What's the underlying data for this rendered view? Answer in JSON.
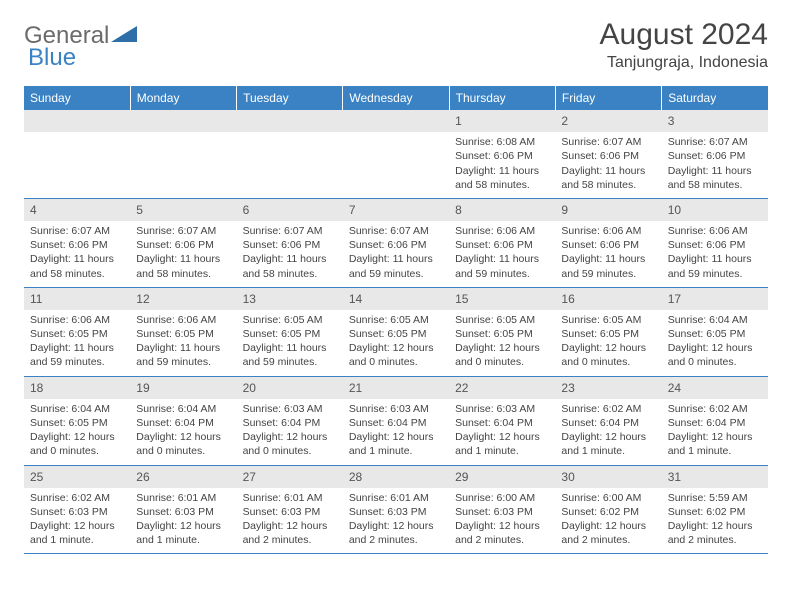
{
  "logo": {
    "general": "General",
    "blue": "Blue"
  },
  "title": "August 2024",
  "location": "Tanjungraja, Indonesia",
  "colors": {
    "header_bg": "#3b82c4",
    "header_text": "#ffffff",
    "daynum_bg": "#e8e8e8",
    "text": "#444444",
    "row_border": "#3b82c4",
    "background": "#ffffff"
  },
  "weekdays": [
    "Sunday",
    "Monday",
    "Tuesday",
    "Wednesday",
    "Thursday",
    "Friday",
    "Saturday"
  ],
  "first_weekday_index": 4,
  "days": [
    {
      "n": 1,
      "sunrise": "6:08 AM",
      "sunset": "6:06 PM",
      "daylight": "11 hours and 58 minutes."
    },
    {
      "n": 2,
      "sunrise": "6:07 AM",
      "sunset": "6:06 PM",
      "daylight": "11 hours and 58 minutes."
    },
    {
      "n": 3,
      "sunrise": "6:07 AM",
      "sunset": "6:06 PM",
      "daylight": "11 hours and 58 minutes."
    },
    {
      "n": 4,
      "sunrise": "6:07 AM",
      "sunset": "6:06 PM",
      "daylight": "11 hours and 58 minutes."
    },
    {
      "n": 5,
      "sunrise": "6:07 AM",
      "sunset": "6:06 PM",
      "daylight": "11 hours and 58 minutes."
    },
    {
      "n": 6,
      "sunrise": "6:07 AM",
      "sunset": "6:06 PM",
      "daylight": "11 hours and 58 minutes."
    },
    {
      "n": 7,
      "sunrise": "6:07 AM",
      "sunset": "6:06 PM",
      "daylight": "11 hours and 59 minutes."
    },
    {
      "n": 8,
      "sunrise": "6:06 AM",
      "sunset": "6:06 PM",
      "daylight": "11 hours and 59 minutes."
    },
    {
      "n": 9,
      "sunrise": "6:06 AM",
      "sunset": "6:06 PM",
      "daylight": "11 hours and 59 minutes."
    },
    {
      "n": 10,
      "sunrise": "6:06 AM",
      "sunset": "6:06 PM",
      "daylight": "11 hours and 59 minutes."
    },
    {
      "n": 11,
      "sunrise": "6:06 AM",
      "sunset": "6:05 PM",
      "daylight": "11 hours and 59 minutes."
    },
    {
      "n": 12,
      "sunrise": "6:06 AM",
      "sunset": "6:05 PM",
      "daylight": "11 hours and 59 minutes."
    },
    {
      "n": 13,
      "sunrise": "6:05 AM",
      "sunset": "6:05 PM",
      "daylight": "11 hours and 59 minutes."
    },
    {
      "n": 14,
      "sunrise": "6:05 AM",
      "sunset": "6:05 PM",
      "daylight": "12 hours and 0 minutes."
    },
    {
      "n": 15,
      "sunrise": "6:05 AM",
      "sunset": "6:05 PM",
      "daylight": "12 hours and 0 minutes."
    },
    {
      "n": 16,
      "sunrise": "6:05 AM",
      "sunset": "6:05 PM",
      "daylight": "12 hours and 0 minutes."
    },
    {
      "n": 17,
      "sunrise": "6:04 AM",
      "sunset": "6:05 PM",
      "daylight": "12 hours and 0 minutes."
    },
    {
      "n": 18,
      "sunrise": "6:04 AM",
      "sunset": "6:05 PM",
      "daylight": "12 hours and 0 minutes."
    },
    {
      "n": 19,
      "sunrise": "6:04 AM",
      "sunset": "6:04 PM",
      "daylight": "12 hours and 0 minutes."
    },
    {
      "n": 20,
      "sunrise": "6:03 AM",
      "sunset": "6:04 PM",
      "daylight": "12 hours and 0 minutes."
    },
    {
      "n": 21,
      "sunrise": "6:03 AM",
      "sunset": "6:04 PM",
      "daylight": "12 hours and 1 minute."
    },
    {
      "n": 22,
      "sunrise": "6:03 AM",
      "sunset": "6:04 PM",
      "daylight": "12 hours and 1 minute."
    },
    {
      "n": 23,
      "sunrise": "6:02 AM",
      "sunset": "6:04 PM",
      "daylight": "12 hours and 1 minute."
    },
    {
      "n": 24,
      "sunrise": "6:02 AM",
      "sunset": "6:04 PM",
      "daylight": "12 hours and 1 minute."
    },
    {
      "n": 25,
      "sunrise": "6:02 AM",
      "sunset": "6:03 PM",
      "daylight": "12 hours and 1 minute."
    },
    {
      "n": 26,
      "sunrise": "6:01 AM",
      "sunset": "6:03 PM",
      "daylight": "12 hours and 1 minute."
    },
    {
      "n": 27,
      "sunrise": "6:01 AM",
      "sunset": "6:03 PM",
      "daylight": "12 hours and 2 minutes."
    },
    {
      "n": 28,
      "sunrise": "6:01 AM",
      "sunset": "6:03 PM",
      "daylight": "12 hours and 2 minutes."
    },
    {
      "n": 29,
      "sunrise": "6:00 AM",
      "sunset": "6:03 PM",
      "daylight": "12 hours and 2 minutes."
    },
    {
      "n": 30,
      "sunrise": "6:00 AM",
      "sunset": "6:02 PM",
      "daylight": "12 hours and 2 minutes."
    },
    {
      "n": 31,
      "sunrise": "5:59 AM",
      "sunset": "6:02 PM",
      "daylight": "12 hours and 2 minutes."
    }
  ],
  "labels": {
    "sunrise": "Sunrise:",
    "sunset": "Sunset:",
    "daylight": "Daylight:"
  }
}
